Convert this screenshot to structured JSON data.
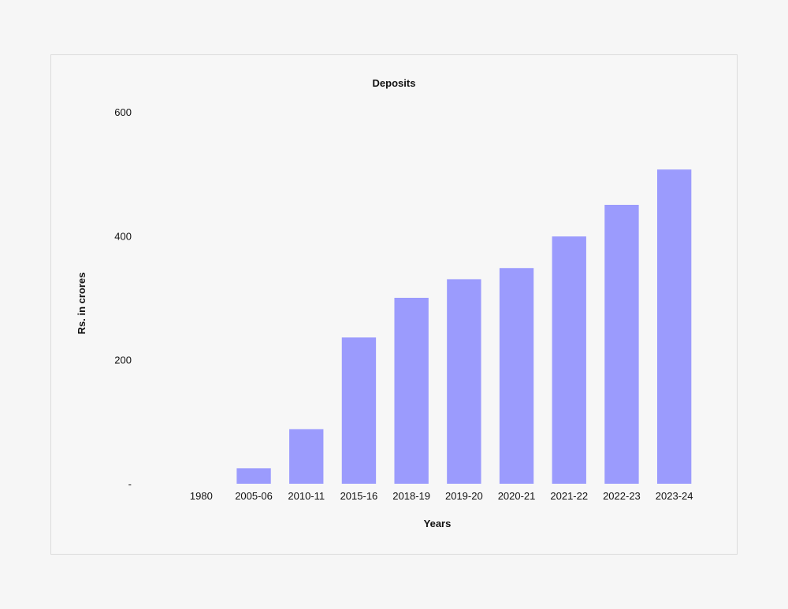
{
  "chart_data": {
    "type": "bar",
    "title": "Deposits",
    "xlabel": "Years",
    "ylabel": "Rs. in crores",
    "categories": [
      "1980",
      "2005-06",
      "2010-11",
      "2015-16",
      "2018-19",
      "2019-20",
      "2020-21",
      "2021-22",
      "2022-23",
      "2023-24"
    ],
    "values": [
      0,
      25,
      88,
      236,
      300,
      330,
      348,
      399,
      450,
      507
    ],
    "ylim": [
      0,
      600
    ],
    "yticks": [
      0,
      200,
      400,
      600
    ],
    "ytick_labels": [
      "-",
      "200",
      "400",
      "600"
    ],
    "grid": false,
    "legend": "none",
    "bar_color": "#9b9bfd"
  }
}
